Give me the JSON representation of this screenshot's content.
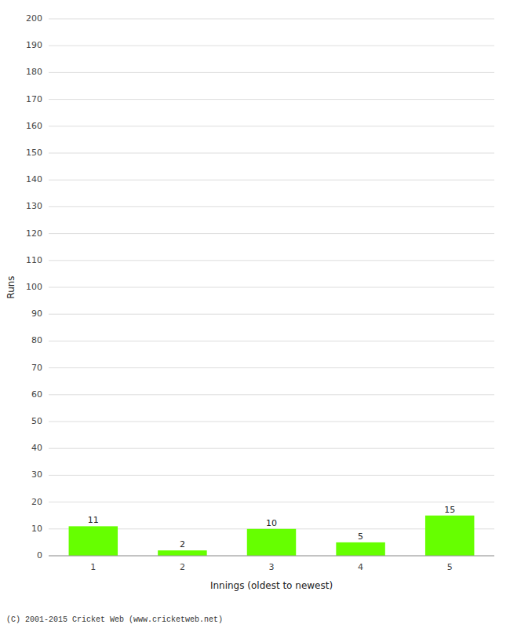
{
  "chart_data": {
    "type": "bar",
    "categories": [
      "1",
      "2",
      "3",
      "4",
      "5"
    ],
    "values": [
      11,
      2,
      10,
      5,
      15
    ],
    "color": "#66ff00",
    "xlabel": "Innings (oldest to newest)",
    "ylabel": "Runs",
    "ylim": [
      0,
      200
    ],
    "yticks": [
      0,
      10,
      20,
      30,
      40,
      50,
      60,
      70,
      80,
      90,
      100,
      110,
      120,
      130,
      140,
      150,
      160,
      170,
      180,
      190,
      200
    ],
    "grid": true,
    "data_labels": true,
    "annotations": [
      "(C) 2001-2015 Cricket Web (www.cricketweb.net)"
    ]
  }
}
